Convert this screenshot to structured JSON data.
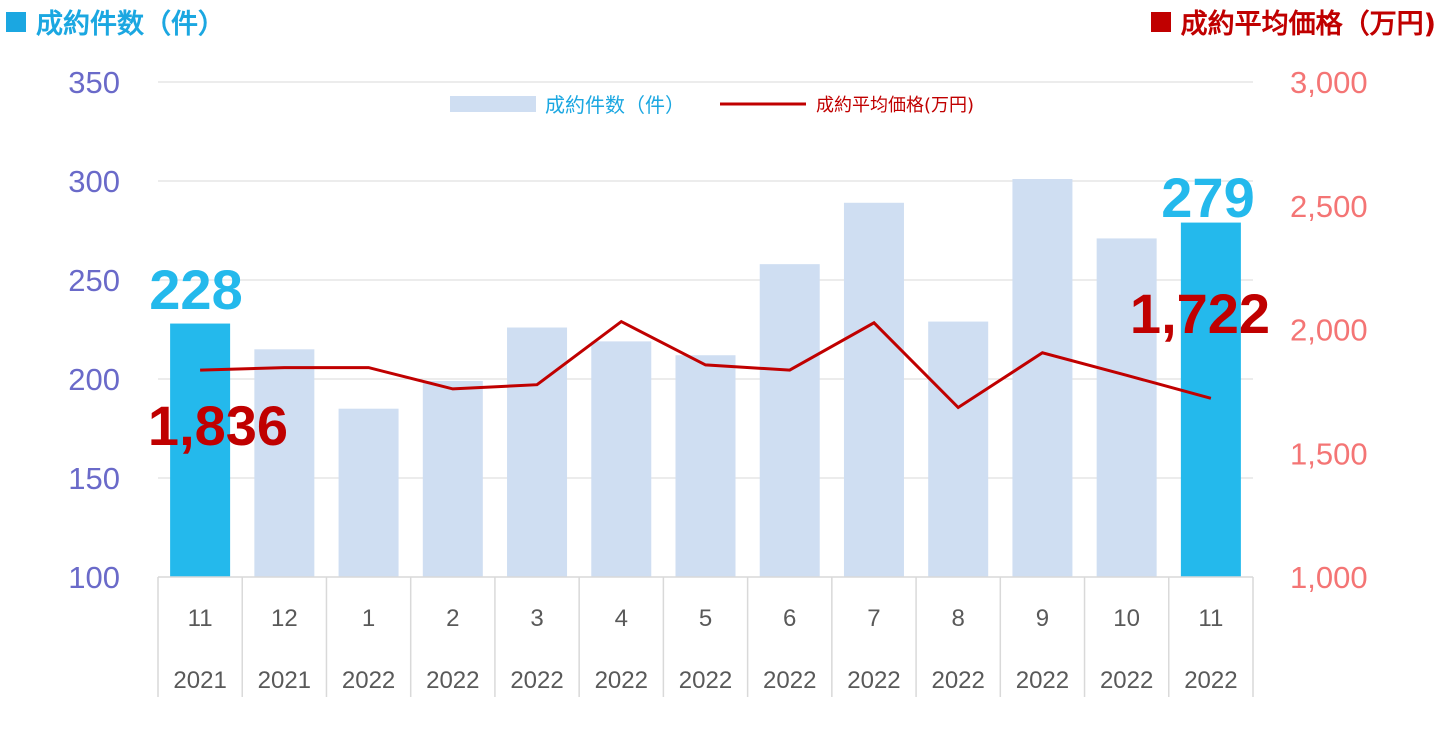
{
  "header": {
    "left_title": "成約件数（件）",
    "right_title": "成約平均価格（万円)"
  },
  "legend": {
    "bar_label": "成約件数（件）",
    "line_label": "成約平均価格(万円)"
  },
  "colors": {
    "bar_light": "#CFDEF2",
    "bar_highlight": "#24B9EC",
    "line": "#C00000",
    "left_axis": "#6A6AC9",
    "right_axis": "#F47575",
    "header_left": "#1BA7E1",
    "header_right": "#C00000"
  },
  "chart_data": {
    "type": "bar",
    "categories": [
      {
        "month": "11",
        "year": "2021"
      },
      {
        "month": "12",
        "year": "2021"
      },
      {
        "month": "1",
        "year": "2022"
      },
      {
        "month": "2",
        "year": "2022"
      },
      {
        "month": "3",
        "year": "2022"
      },
      {
        "month": "4",
        "year": "2022"
      },
      {
        "month": "5",
        "year": "2022"
      },
      {
        "month": "6",
        "year": "2022"
      },
      {
        "month": "7",
        "year": "2022"
      },
      {
        "month": "8",
        "year": "2022"
      },
      {
        "month": "9",
        "year": "2022"
      },
      {
        "month": "10",
        "year": "2022"
      },
      {
        "month": "11",
        "year": "2022"
      }
    ],
    "series": [
      {
        "name": "成約件数（件）",
        "type": "bar",
        "axis": "left",
        "values": [
          228,
          215,
          185,
          199,
          226,
          219,
          212,
          258,
          289,
          229,
          301,
          271,
          279
        ],
        "highlighted": [
          true,
          false,
          false,
          false,
          false,
          false,
          false,
          false,
          false,
          false,
          false,
          false,
          true
        ]
      },
      {
        "name": "成約平均価格(万円)",
        "type": "line",
        "axis": "right",
        "values": [
          1836,
          1846,
          1846,
          1760,
          1777,
          2032,
          1857,
          1836,
          2027,
          1685,
          1906,
          1815,
          1722
        ]
      }
    ],
    "left_axis": {
      "ylim": [
        100,
        350
      ],
      "ticks": [
        "100",
        "150",
        "200",
        "250",
        "300",
        "350"
      ]
    },
    "right_axis": {
      "ylim": [
        1000,
        3000
      ],
      "ticks": [
        "1,000",
        "1,500",
        "2,000",
        "2,500",
        "3,000"
      ]
    },
    "callouts": {
      "first_bar": "228",
      "last_bar": "279",
      "first_line": "1,836",
      "last_line": "1,722"
    },
    "grid": true,
    "legend_position": "top-center"
  }
}
